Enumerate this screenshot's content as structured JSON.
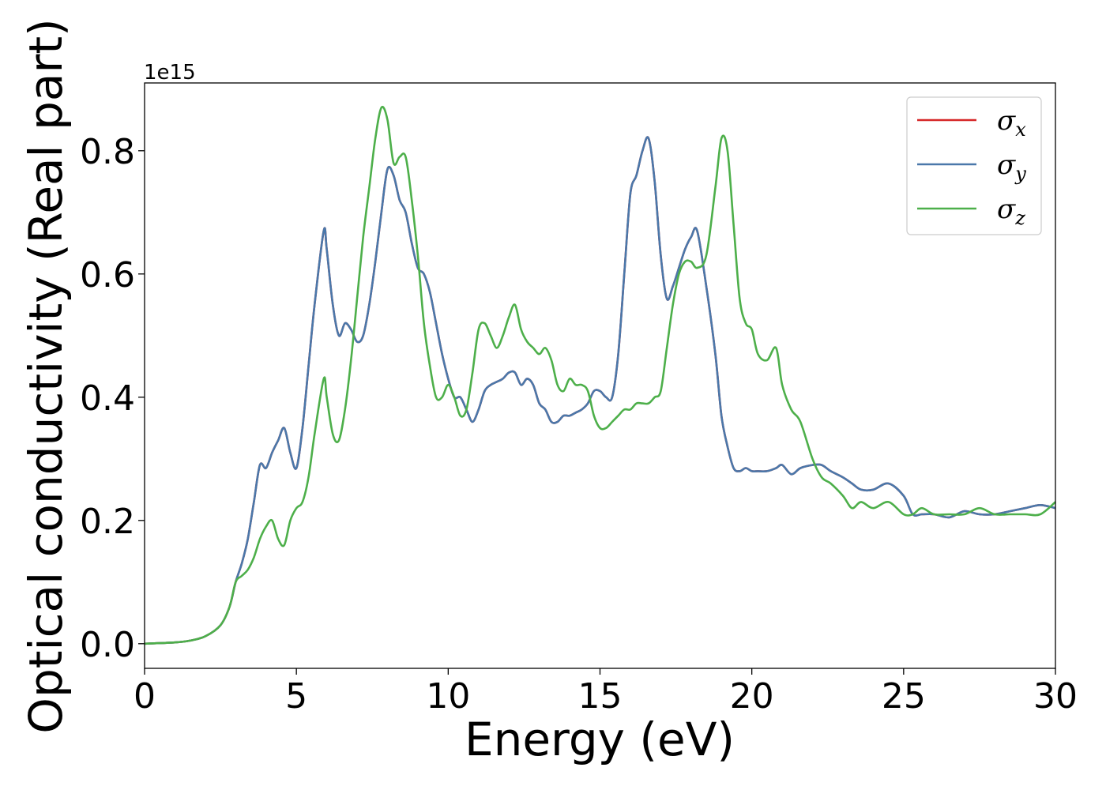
{
  "chart_data": {
    "type": "line",
    "xlabel": "Energy (eV)",
    "ylabel": "Optical conductivity (Real part)",
    "y_offset_label": "1e15",
    "y_scale_factor": 1000000000000000.0,
    "xlim": [
      0,
      30
    ],
    "ylim": [
      -0.04,
      0.91
    ],
    "x_ticks": [
      0,
      5,
      10,
      15,
      20,
      25,
      30
    ],
    "x_tick_labels": [
      "0",
      "5",
      "10",
      "15",
      "20",
      "25",
      "30"
    ],
    "y_ticks": [
      0.0,
      0.2,
      0.4,
      0.6,
      0.8
    ],
    "y_tick_labels": [
      "0.0",
      "0.2",
      "0.4",
      "0.6",
      "0.8"
    ],
    "grid": false,
    "legend_position": "top-right",
    "series": [
      {
        "name": "σ",
        "subscript": "x",
        "color": "#d62728",
        "x": [
          0,
          1,
          1.5,
          2,
          2.5,
          2.8,
          3,
          3.2,
          3.4,
          3.6,
          3.8,
          4,
          4.2,
          4.4,
          4.6,
          4.8,
          5,
          5.2,
          5.4,
          5.6,
          5.9,
          6,
          6.2,
          6.4,
          6.6,
          6.8,
          7,
          7.2,
          7.4,
          7.6,
          7.8,
          8,
          8.2,
          8.4,
          8.6,
          8.8,
          9,
          9.2,
          9.4,
          9.6,
          9.8,
          10,
          10.2,
          10.4,
          10.6,
          10.8,
          11,
          11.2,
          11.4,
          11.6,
          11.8,
          12,
          12.2,
          12.4,
          12.6,
          12.8,
          13,
          13.2,
          13.4,
          13.6,
          13.8,
          14,
          14.2,
          14.4,
          14.6,
          14.8,
          15,
          15.2,
          15.4,
          15.6,
          15.8,
          16,
          16.2,
          16.4,
          16.6,
          16.8,
          17,
          17.2,
          17.4,
          17.6,
          17.8,
          18,
          18.2,
          18.5,
          18.8,
          19,
          19.2,
          19.4,
          19.6,
          19.8,
          20,
          20.2,
          20.5,
          20.8,
          21,
          21.3,
          21.6,
          22,
          22.3,
          22.6,
          23,
          23.3,
          23.6,
          24,
          24.5,
          25,
          25.3,
          25.6,
          26,
          26.5,
          27,
          27.5,
          28,
          28.5,
          29,
          29.5,
          30
        ],
        "y": [
          0,
          0.002,
          0.005,
          0.012,
          0.03,
          0.06,
          0.1,
          0.13,
          0.17,
          0.23,
          0.29,
          0.285,
          0.31,
          0.33,
          0.35,
          0.31,
          0.285,
          0.35,
          0.45,
          0.55,
          0.67,
          0.64,
          0.55,
          0.5,
          0.52,
          0.51,
          0.49,
          0.5,
          0.55,
          0.62,
          0.7,
          0.77,
          0.76,
          0.72,
          0.7,
          0.65,
          0.61,
          0.6,
          0.57,
          0.52,
          0.47,
          0.43,
          0.4,
          0.4,
          0.38,
          0.36,
          0.38,
          0.41,
          0.42,
          0.425,
          0.43,
          0.44,
          0.44,
          0.42,
          0.43,
          0.42,
          0.39,
          0.38,
          0.36,
          0.36,
          0.37,
          0.37,
          0.375,
          0.38,
          0.39,
          0.41,
          0.41,
          0.4,
          0.4,
          0.47,
          0.6,
          0.73,
          0.76,
          0.8,
          0.82,
          0.75,
          0.63,
          0.56,
          0.58,
          0.61,
          0.64,
          0.66,
          0.67,
          0.58,
          0.47,
          0.37,
          0.32,
          0.285,
          0.28,
          0.285,
          0.28,
          0.28,
          0.28,
          0.285,
          0.29,
          0.275,
          0.285,
          0.29,
          0.29,
          0.28,
          0.27,
          0.26,
          0.25,
          0.25,
          0.26,
          0.24,
          0.21,
          0.21,
          0.21,
          0.205,
          0.215,
          0.21,
          0.21,
          0.215,
          0.22,
          0.225,
          0.22
        ],
        "note_overlap": true
      },
      {
        "name": "σ",
        "subscript": "y",
        "color": "#4a78aa",
        "x": [
          0,
          1,
          1.5,
          2,
          2.5,
          2.8,
          3,
          3.2,
          3.4,
          3.6,
          3.8,
          4,
          4.2,
          4.4,
          4.6,
          4.8,
          5,
          5.2,
          5.4,
          5.6,
          5.9,
          6,
          6.2,
          6.4,
          6.6,
          6.8,
          7,
          7.2,
          7.4,
          7.6,
          7.8,
          8,
          8.2,
          8.4,
          8.6,
          8.8,
          9,
          9.2,
          9.4,
          9.6,
          9.8,
          10,
          10.2,
          10.4,
          10.6,
          10.8,
          11,
          11.2,
          11.4,
          11.6,
          11.8,
          12,
          12.2,
          12.4,
          12.6,
          12.8,
          13,
          13.2,
          13.4,
          13.6,
          13.8,
          14,
          14.2,
          14.4,
          14.6,
          14.8,
          15,
          15.2,
          15.4,
          15.6,
          15.8,
          16,
          16.2,
          16.4,
          16.6,
          16.8,
          17,
          17.2,
          17.4,
          17.6,
          17.8,
          18,
          18.2,
          18.5,
          18.8,
          19,
          19.2,
          19.4,
          19.6,
          19.8,
          20,
          20.2,
          20.5,
          20.8,
          21,
          21.3,
          21.6,
          22,
          22.3,
          22.6,
          23,
          23.3,
          23.6,
          24,
          24.5,
          25,
          25.3,
          25.6,
          26,
          26.5,
          27,
          27.5,
          28,
          28.5,
          29,
          29.5,
          30
        ],
        "y": [
          0,
          0.002,
          0.005,
          0.012,
          0.03,
          0.06,
          0.1,
          0.13,
          0.17,
          0.23,
          0.29,
          0.285,
          0.31,
          0.33,
          0.35,
          0.31,
          0.285,
          0.35,
          0.45,
          0.55,
          0.67,
          0.64,
          0.55,
          0.5,
          0.52,
          0.51,
          0.49,
          0.5,
          0.55,
          0.62,
          0.7,
          0.77,
          0.76,
          0.72,
          0.7,
          0.65,
          0.61,
          0.6,
          0.57,
          0.52,
          0.47,
          0.43,
          0.4,
          0.4,
          0.38,
          0.36,
          0.38,
          0.41,
          0.42,
          0.425,
          0.43,
          0.44,
          0.44,
          0.42,
          0.43,
          0.42,
          0.39,
          0.38,
          0.36,
          0.36,
          0.37,
          0.37,
          0.375,
          0.38,
          0.39,
          0.41,
          0.41,
          0.4,
          0.4,
          0.47,
          0.6,
          0.73,
          0.76,
          0.8,
          0.82,
          0.75,
          0.63,
          0.56,
          0.58,
          0.61,
          0.64,
          0.66,
          0.67,
          0.58,
          0.47,
          0.37,
          0.32,
          0.285,
          0.28,
          0.285,
          0.28,
          0.28,
          0.28,
          0.285,
          0.29,
          0.275,
          0.285,
          0.29,
          0.29,
          0.28,
          0.27,
          0.26,
          0.25,
          0.25,
          0.26,
          0.24,
          0.21,
          0.21,
          0.21,
          0.205,
          0.215,
          0.21,
          0.21,
          0.215,
          0.22,
          0.225,
          0.22
        ]
      },
      {
        "name": "σ",
        "subscript": "z",
        "color": "#4daf4a",
        "x": [
          0,
          1,
          1.5,
          2,
          2.5,
          2.8,
          3,
          3.2,
          3.4,
          3.6,
          3.8,
          4,
          4.2,
          4.4,
          4.6,
          4.8,
          5,
          5.2,
          5.4,
          5.6,
          5.9,
          6,
          6.2,
          6.4,
          6.6,
          6.8,
          7,
          7.2,
          7.4,
          7.6,
          7.8,
          8,
          8.2,
          8.4,
          8.6,
          8.8,
          9,
          9.2,
          9.4,
          9.6,
          9.8,
          10,
          10.2,
          10.4,
          10.6,
          10.8,
          11,
          11.2,
          11.4,
          11.6,
          11.8,
          12,
          12.2,
          12.4,
          12.6,
          12.8,
          13,
          13.2,
          13.4,
          13.6,
          13.8,
          14,
          14.2,
          14.4,
          14.6,
          14.8,
          15,
          15.2,
          15.4,
          15.6,
          15.8,
          16,
          16.2,
          16.4,
          16.6,
          16.8,
          17,
          17.2,
          17.4,
          17.6,
          17.8,
          18,
          18.2,
          18.5,
          18.8,
          19,
          19.2,
          19.4,
          19.6,
          19.8,
          20,
          20.2,
          20.5,
          20.8,
          21,
          21.3,
          21.6,
          22,
          22.3,
          22.6,
          23,
          23.3,
          23.6,
          24,
          24.5,
          25,
          25.3,
          25.6,
          26,
          26.5,
          27,
          27.5,
          28,
          28.5,
          29,
          29.5,
          30
        ],
        "y": [
          0,
          0.002,
          0.005,
          0.012,
          0.03,
          0.06,
          0.1,
          0.11,
          0.12,
          0.14,
          0.17,
          0.19,
          0.2,
          0.17,
          0.16,
          0.2,
          0.22,
          0.23,
          0.27,
          0.34,
          0.43,
          0.4,
          0.34,
          0.33,
          0.38,
          0.46,
          0.56,
          0.66,
          0.74,
          0.82,
          0.87,
          0.85,
          0.78,
          0.79,
          0.79,
          0.72,
          0.63,
          0.52,
          0.45,
          0.4,
          0.4,
          0.42,
          0.4,
          0.37,
          0.38,
          0.44,
          0.51,
          0.52,
          0.5,
          0.48,
          0.5,
          0.53,
          0.55,
          0.51,
          0.49,
          0.48,
          0.47,
          0.48,
          0.46,
          0.42,
          0.41,
          0.43,
          0.42,
          0.42,
          0.41,
          0.37,
          0.35,
          0.35,
          0.36,
          0.37,
          0.38,
          0.38,
          0.39,
          0.39,
          0.39,
          0.4,
          0.41,
          0.48,
          0.55,
          0.6,
          0.62,
          0.62,
          0.61,
          0.63,
          0.74,
          0.82,
          0.8,
          0.68,
          0.56,
          0.52,
          0.51,
          0.47,
          0.46,
          0.48,
          0.42,
          0.38,
          0.36,
          0.3,
          0.27,
          0.26,
          0.24,
          0.22,
          0.23,
          0.22,
          0.23,
          0.21,
          0.21,
          0.22,
          0.21,
          0.21,
          0.21,
          0.22,
          0.21,
          0.21,
          0.21,
          0.21,
          0.23
        ]
      }
    ]
  }
}
